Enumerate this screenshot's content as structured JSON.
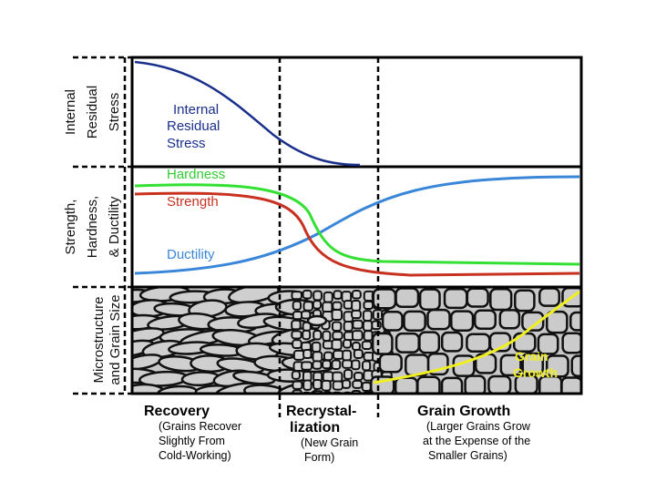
{
  "panels": [
    {
      "label": [
        "Internal",
        "Residual",
        "Stress"
      ]
    },
    {
      "label": [
        "Strength,",
        "Hardness,",
        "& Ductility"
      ]
    },
    {
      "label": [
        "Microstructure",
        "and Grain Size"
      ]
    }
  ],
  "curve_labels": {
    "stress": [
      "Internal",
      "Residual",
      "Stress"
    ],
    "hardness": "Hardness",
    "strength": "Strength",
    "ductility": "Ductility",
    "grain_growth": [
      "Grain",
      "Growth"
    ]
  },
  "stages": [
    {
      "title": [
        "Recovery"
      ],
      "description": [
        "(Grains Recover",
        "Slightly From",
        "Cold-Working)"
      ]
    },
    {
      "title": [
        "Recrystal-",
        "lization"
      ],
      "description": [
        "(New Grain",
        "Form)"
      ]
    },
    {
      "title": [
        "Grain Growth"
      ],
      "description": [
        "(Larger Grains Grow",
        "at the Expense of the",
        "Smaller Grains)"
      ]
    }
  ]
}
